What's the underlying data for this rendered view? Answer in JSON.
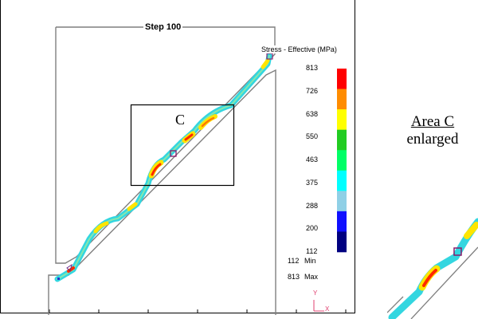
{
  "step_label": "Step  100",
  "legend": {
    "title": "Stress - Effective (MPa)",
    "ticks": [
      "813",
      "726",
      "638",
      "550",
      "463",
      "375",
      "288",
      "200",
      "112"
    ],
    "colors": [
      "#ff0000",
      "#ff8c00",
      "#ffff00",
      "#22cc22",
      "#00ff66",
      "#00ffff",
      "#8fd0e6",
      "#1010ff",
      "#000080"
    ],
    "min_label": "Min",
    "min_value": "112",
    "max_label": "Max",
    "max_value": "813"
  },
  "region_label": "C",
  "axis_y_label": "Y",
  "axis_x_label": "X",
  "area_caption": {
    "title": "Area C",
    "subtitle": "enlarged"
  },
  "colors": {
    "die_outline": "#7f7f7f",
    "strip_body": "#33d6e0",
    "highlight_hot": "#ff2a00",
    "highlight_warm": "#ffe500",
    "axis_triad": "#e04070"
  },
  "icons": [
    "triad-axes-icon",
    "node-marker-icon"
  ]
}
